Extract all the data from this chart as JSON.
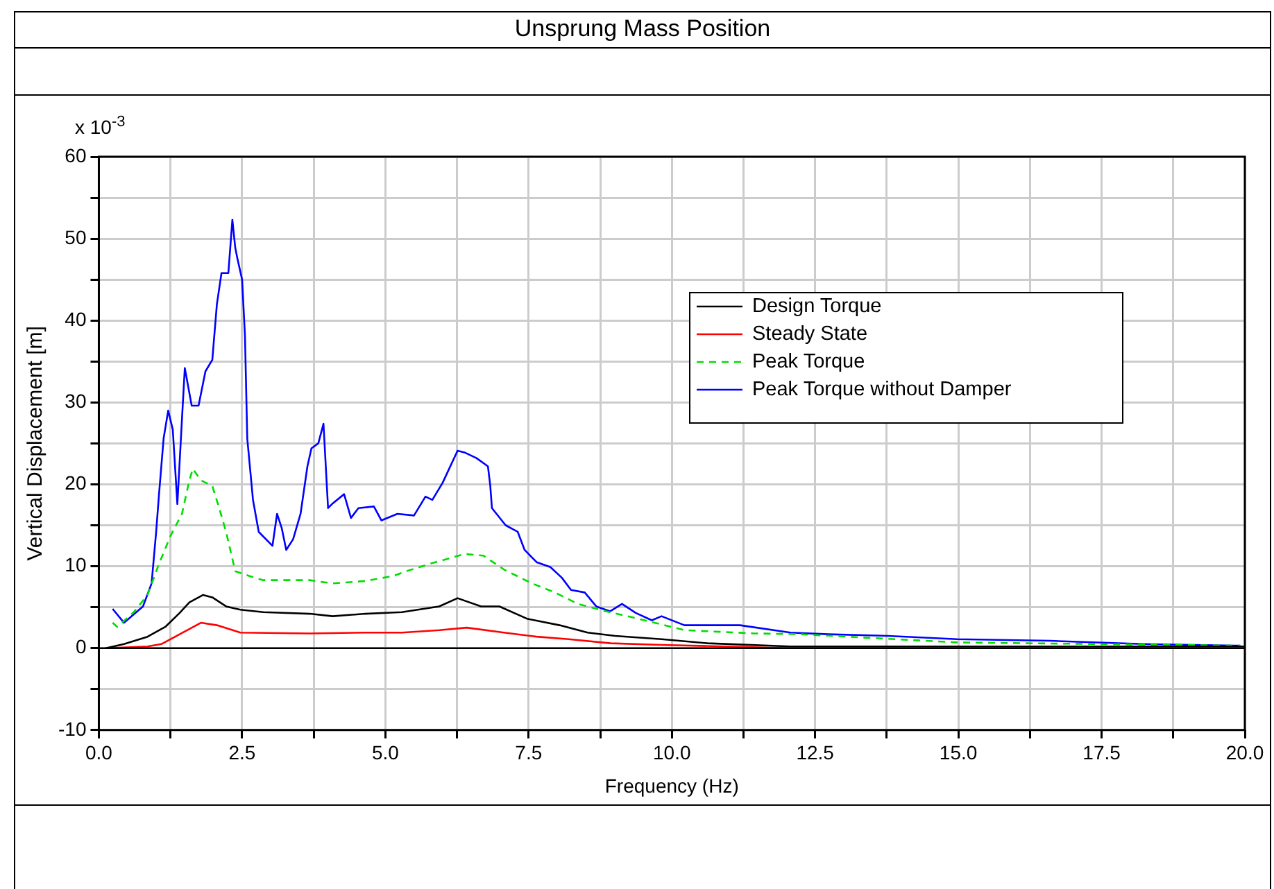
{
  "chart_data": {
    "type": "line",
    "title": "Unsprung Mass Position",
    "xlabel": "Frequency (Hz)",
    "ylabel": "Vertical Displacement [m]",
    "annotations": [
      "x 10$^{-3}$"
    ],
    "xlim": [
      0,
      20
    ],
    "xticks": [
      {
        "value": 0,
        "label": "0.0"
      },
      {
        "value": 1.25,
        "label": null
      },
      2.5,
      {
        "value": 3.75,
        "label": null
      },
      {
        "value": 5,
        "label": "5.0"
      },
      {
        "value": 6.25,
        "label": null
      },
      7.5,
      {
        "value": 8.75,
        "label": null
      },
      {
        "value": 10,
        "label": "10.0"
      },
      {
        "value": 11.25,
        "label": null
      },
      12.5,
      {
        "value": 13.75,
        "label": null
      },
      {
        "value": 15,
        "label": "15.0"
      },
      {
        "value": 16.25,
        "label": null
      },
      17.5,
      {
        "value": 18.75,
        "label": null
      },
      {
        "value": 20,
        "label": "20.0"
      }
    ],
    "ylim": [
      -10,
      60
    ],
    "yticks": [
      -10,
      {
        "value": -5,
        "label": null
      },
      0,
      {
        "value": 5,
        "label": null
      },
      10,
      {
        "value": 15,
        "label": null
      },
      20,
      {
        "value": 25,
        "label": null
      },
      30,
      {
        "value": 35,
        "label": null
      },
      40,
      {
        "value": 45,
        "label": null
      },
      50,
      {
        "value": 55,
        "label": null
      },
      60
    ],
    "grid": true,
    "legend": "top right",
    "marker": "none",
    "ref_lines": [
      {
        "axis": "y",
        "value": 0,
        "color": "#000000"
      }
    ],
    "series": [
      {
        "name": "Design Torque",
        "color": "#000000",
        "line_style": "solid",
        "x": [
          0.12,
          0.44,
          0.85,
          1.16,
          1.41,
          1.58,
          1.82,
          1.98,
          2.22,
          2.47,
          2.87,
          3.68,
          4.08,
          4.65,
          5.29,
          5.94,
          6.26,
          6.67,
          6.99,
          7.47,
          8.04,
          8.53,
          9.01,
          9.82,
          10.62,
          12.07,
          14,
          16,
          18,
          20
        ],
        "values": [
          0,
          0.5,
          1.4,
          2.6,
          4.3,
          5.6,
          6.5,
          6.2,
          5.1,
          4.7,
          4.4,
          4.2,
          3.9,
          4.2,
          4.4,
          5.1,
          6.1,
          5.1,
          5.1,
          3.6,
          2.8,
          1.9,
          1.5,
          1.1,
          0.6,
          0.2,
          0.2,
          0.2,
          0.2,
          0.2
        ]
      },
      {
        "name": "Steady State",
        "color": "#ff0000",
        "line_style": "solid",
        "x": [
          0.12,
          0.85,
          1.09,
          1.41,
          1.78,
          2.06,
          2.47,
          3.68,
          4.65,
          5.29,
          5.94,
          6.42,
          7.07,
          7.64,
          8.2,
          8.93,
          9.82,
          12.07,
          16,
          20
        ],
        "values": [
          0,
          0.2,
          0.5,
          1.7,
          3.1,
          2.8,
          1.9,
          1.8,
          1.9,
          1.9,
          2.2,
          2.5,
          1.9,
          1.4,
          1.1,
          0.6,
          0.4,
          0,
          0,
          0
        ]
      },
      {
        "name": "Peak Torque",
        "color": "#00dd00",
        "line_style": "dashed",
        "x": [
          0.24,
          0.32,
          0.61,
          0.85,
          1.05,
          1.25,
          1.45,
          1.58,
          1.64,
          1.78,
          1.98,
          2.1,
          2.22,
          2.38,
          2.63,
          2.87,
          3.68,
          4.08,
          4.65,
          5.13,
          5.37,
          5.78,
          6.38,
          6.71,
          7.07,
          7.56,
          7.96,
          8.36,
          8.85,
          9.41,
          10.22,
          11.43,
          12.24,
          14.98,
          19.92
        ],
        "values": [
          3.1,
          2.6,
          4.4,
          6.5,
          10.3,
          13.7,
          16.4,
          20.5,
          21.9,
          20.5,
          19.8,
          17.1,
          14.2,
          9.4,
          8.8,
          8.3,
          8.3,
          7.9,
          8.2,
          8.8,
          9.4,
          10.3,
          11.5,
          11.3,
          9.6,
          7.9,
          6.8,
          5.4,
          4.5,
          3.6,
          2.2,
          1.8,
          1.7,
          0.7,
          0.3
        ]
      },
      {
        "name": "Peak Torque without Damper",
        "color": "#0000ff",
        "line_style": "solid",
        "x": [
          0.24,
          0.44,
          0.77,
          0.92,
          1.0,
          1.05,
          1.13,
          1.21,
          1.29,
          1.37,
          1.45,
          1.5,
          1.62,
          1.74,
          1.86,
          1.98,
          2.06,
          2.14,
          2.26,
          2.33,
          2.38,
          2.42,
          2.5,
          2.55,
          2.59,
          2.69,
          2.79,
          3.03,
          3.11,
          3.19,
          3.27,
          3.39,
          3.52,
          3.64,
          3.71,
          3.83,
          3.92,
          4.0,
          4.07,
          4.28,
          4.4,
          4.53,
          4.8,
          4.93,
          5.21,
          5.5,
          5.7,
          5.82,
          6.0,
          6.26,
          6.38,
          6.59,
          6.79,
          6.83,
          6.86,
          7.1,
          7.31,
          7.43,
          7.64,
          7.88,
          8.08,
          8.24,
          8.48,
          8.68,
          8.92,
          9.13,
          9.37,
          9.65,
          9.82,
          10.22,
          11.19,
          12.07,
          12.73,
          13.77,
          14.98,
          16.6,
          18.23,
          19.92
        ],
        "values": [
          4.8,
          3.1,
          5.1,
          7.9,
          14.2,
          18.8,
          25.6,
          29,
          26.7,
          17.6,
          27.9,
          34.2,
          29.6,
          29.6,
          33.8,
          35.2,
          42,
          45.8,
          45.8,
          52.3,
          48.9,
          47.5,
          45,
          38.1,
          25.6,
          18.1,
          14.2,
          12.5,
          16.4,
          14.7,
          12,
          13.3,
          16.4,
          22.2,
          24.4,
          25,
          27.4,
          17.1,
          17.6,
          18.8,
          15.9,
          17.1,
          17.3,
          15.6,
          16.4,
          16.2,
          18.5,
          18.1,
          20.2,
          24.1,
          23.9,
          23.2,
          22.2,
          19.9,
          17.1,
          15,
          14.2,
          12,
          10.5,
          9.9,
          8.6,
          7.1,
          6.8,
          5.1,
          4.5,
          5.4,
          4.3,
          3.4,
          3.9,
          2.8,
          2.8,
          1.9,
          1.7,
          1.5,
          1.1,
          0.9,
          0.5,
          0.3
        ]
      }
    ]
  }
}
